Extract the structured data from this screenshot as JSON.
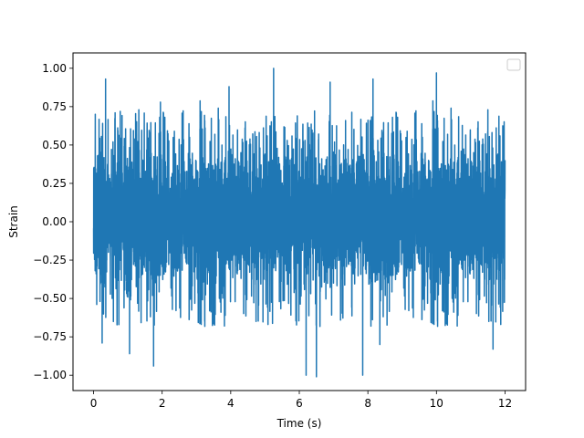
{
  "chart_data": {
    "type": "line",
    "title": "",
    "xlabel": "Time (s)",
    "ylabel": "Strain",
    "xlim": [
      -0.6,
      12.6
    ],
    "ylim": [
      -1.1,
      1.1
    ],
    "xticks": [
      0,
      2,
      4,
      6,
      8,
      10,
      12
    ],
    "xtick_labels": [
      "0",
      "2",
      "4",
      "6",
      "8",
      "10",
      "12"
    ],
    "yticks": [
      -1.0,
      -0.75,
      -0.5,
      -0.25,
      0.0,
      0.25,
      0.5,
      0.75,
      1.0
    ],
    "ytick_labels": [
      "−1.00",
      "−0.75",
      "−0.50",
      "−0.25",
      "0.00",
      "0.25",
      "0.50",
      "0.75",
      "1.00"
    ],
    "grid": false,
    "legend": {
      "placement": "upper-right",
      "entries": []
    },
    "series": [
      {
        "color": "#1f77b4",
        "x_range": [
          0,
          12
        ],
        "description_values": {
          "typical_envelope": [
            -0.5,
            0.55
          ],
          "peak_max": 1.0,
          "peak_min": -1.0
        },
        "notable_peaks": [
          {
            "x": 0.05,
            "y": 0.7
          },
          {
            "x": 0.35,
            "y": 0.93
          },
          {
            "x": 1.95,
            "y": 0.78
          },
          {
            "x": 3.95,
            "y": 0.88
          },
          {
            "x": 5.25,
            "y": 1.0
          },
          {
            "x": 6.9,
            "y": 0.91
          },
          {
            "x": 8.15,
            "y": 0.93
          },
          {
            "x": 10.0,
            "y": 0.97
          },
          {
            "x": 11.5,
            "y": 0.73
          },
          {
            "x": 0.25,
            "y": -0.79
          },
          {
            "x": 1.05,
            "y": -0.86
          },
          {
            "x": 1.75,
            "y": -0.94
          },
          {
            "x": 6.2,
            "y": -1.0
          },
          {
            "x": 6.5,
            "y": -1.01
          },
          {
            "x": 7.85,
            "y": -1.0
          },
          {
            "x": 8.35,
            "y": -0.8
          },
          {
            "x": 11.65,
            "y": -0.83
          }
        ]
      }
    ]
  }
}
